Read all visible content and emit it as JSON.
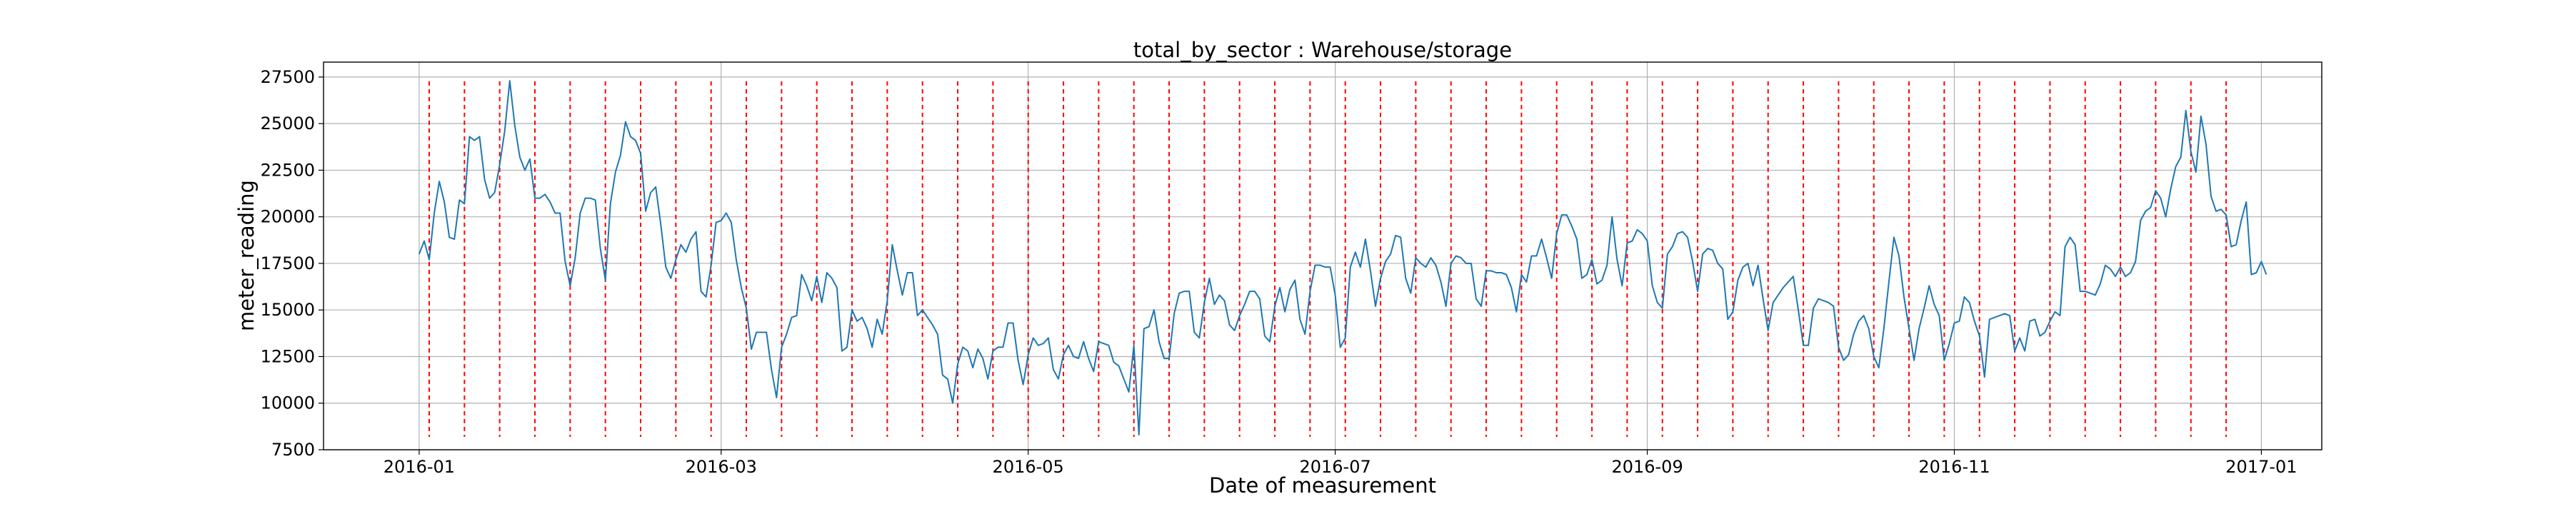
{
  "chart_data": {
    "type": "line",
    "title": "total_by_sector : Warehouse/storage",
    "xlabel": "Date of measurement",
    "ylabel": "meter_reading",
    "xlim": [
      "2015-12-13",
      "2017-01-13"
    ],
    "ylim": [
      7500,
      28300
    ],
    "x_ticks": [
      {
        "date": "2016-01-01",
        "label": "2016-01"
      },
      {
        "date": "2016-03-01",
        "label": "2016-03"
      },
      {
        "date": "2016-05-01",
        "label": "2016-05"
      },
      {
        "date": "2016-07-01",
        "label": "2016-07"
      },
      {
        "date": "2016-09-01",
        "label": "2016-09"
      },
      {
        "date": "2016-11-01",
        "label": "2016-11"
      },
      {
        "date": "2017-01-01",
        "label": "2017-01"
      }
    ],
    "y_ticks": [
      7500,
      10000,
      12500,
      15000,
      17500,
      20000,
      22500,
      25000,
      27500
    ],
    "grid": true,
    "line_color": "#1f77b4",
    "marker_color": "#ff0000",
    "series": [
      {
        "start_date": "2016-01-01",
        "values": [
          18000,
          18700,
          17700,
          20200,
          21900,
          20800,
          18900,
          18800,
          20900,
          20700,
          24300,
          24100,
          24300,
          22000,
          21000,
          21300,
          22800,
          24600,
          27300,
          24900,
          23200,
          22500,
          23100,
          21000,
          21000,
          21200,
          20800,
          20200,
          20200,
          17600,
          16300,
          17800,
          20200,
          21000,
          21000,
          20900,
          18300,
          16600,
          20700,
          22400,
          23300,
          25100,
          24300,
          24100,
          23400,
          20300,
          21300,
          21600,
          19600,
          17300,
          16700,
          17700,
          18500,
          18100,
          18800,
          19200,
          16000,
          15700,
          17400,
          19700,
          19800,
          20200,
          19700,
          17700,
          16200,
          15100,
          12900,
          13800,
          13800,
          13800,
          11800,
          10300,
          13000,
          13700,
          14600,
          14700,
          16900,
          16300,
          15500,
          16800,
          15400,
          17000,
          16700,
          16200,
          12800,
          13000,
          15000,
          14400,
          14600,
          14000,
          13000,
          14500,
          13700,
          15500,
          18500,
          17100,
          15800,
          17000,
          17000,
          14700,
          15000,
          14600,
          14200,
          13700,
          11500,
          11300,
          10000,
          12100,
          13000,
          12800,
          11900,
          12900,
          12400,
          11300,
          12800,
          13000,
          13000,
          14300,
          14300,
          12300,
          11000,
          12600,
          13500,
          13100,
          13200,
          13500,
          11800,
          11300,
          12600,
          13100,
          12500,
          12400,
          13300,
          12400,
          11700,
          13300,
          13200,
          13100,
          12200,
          12000,
          11300,
          10600,
          13100,
          8300,
          14000,
          14100,
          15000,
          13300,
          12400,
          12400,
          14800,
          15900,
          16000,
          16000,
          13800,
          13500,
          15400,
          16700,
          15300,
          15800,
          15500,
          14200,
          13900,
          14700,
          15300,
          16000,
          16000,
          15600,
          13600,
          13300,
          15200,
          16200,
          14900,
          16100,
          16600,
          14500,
          13700,
          16000,
          17400,
          17400,
          17300,
          17300,
          15800,
          13000,
          13500,
          17300,
          18100,
          17300,
          18800,
          17100,
          15200,
          16700,
          17600,
          18000,
          19000,
          18900,
          16700,
          15900,
          17800,
          17500,
          17300,
          17800,
          17400,
          16500,
          15200,
          17500,
          17900,
          17800,
          17500,
          17500,
          15600,
          15200,
          17100,
          17100,
          17000,
          17000,
          16900,
          16200,
          14900,
          16900,
          16500,
          17900,
          17900,
          18800,
          17800,
          16700,
          19100,
          20100,
          20100,
          19500,
          18800,
          16700,
          16900,
          17700,
          16400,
          16600,
          17400,
          20000,
          17700,
          16300,
          18600,
          18700,
          19300,
          19100,
          18700,
          16300,
          15400,
          15100,
          18000,
          18400,
          19100,
          19200,
          18900,
          17600,
          16000,
          18000,
          18300,
          18200,
          17500,
          17200,
          14500,
          14900,
          16600,
          17300,
          17500,
          16300,
          17400,
          15600,
          13900,
          15400,
          15800,
          16200,
          16500,
          16800,
          15000,
          13100,
          13100,
          15100,
          15600,
          15500,
          15400,
          15200,
          13000,
          12300,
          12600,
          13700,
          14400,
          14700,
          14000,
          12500,
          11900,
          14000,
          16500,
          18900,
          17900,
          15700,
          14000,
          12300,
          14000,
          15100,
          16300,
          15300,
          14700,
          12300,
          13200,
          14300,
          14400,
          15700,
          15400,
          14400,
          13600,
          11400,
          14500,
          14600,
          14700,
          14800,
          14700,
          12800,
          13500,
          12800,
          14400,
          14500,
          13600,
          13800,
          14400,
          14900,
          14700,
          18400,
          18900,
          18500,
          16000,
          16000,
          15900,
          15800,
          16400,
          17400,
          17200,
          16800,
          17300,
          16800,
          17000,
          17600,
          19800,
          20300,
          20500,
          21400,
          21000,
          20000,
          21500,
          22700,
          23200,
          25700,
          23500,
          22400,
          25400,
          23900,
          21100,
          20300,
          20400,
          20100,
          18400,
          18500,
          19800,
          20800,
          16900,
          17000,
          17600,
          16900
        ]
      }
    ],
    "markers": {
      "style": "dashed",
      "dates": [
        "2016-01-03",
        "2016-01-10",
        "2016-01-17",
        "2016-01-24",
        "2016-01-31",
        "2016-02-07",
        "2016-02-14",
        "2016-02-21",
        "2016-02-28",
        "2016-03-06",
        "2016-03-13",
        "2016-03-20",
        "2016-03-27",
        "2016-04-03",
        "2016-04-10",
        "2016-04-17",
        "2016-04-24",
        "2016-05-01",
        "2016-05-08",
        "2016-05-15",
        "2016-05-22",
        "2016-05-29",
        "2016-06-05",
        "2016-06-12",
        "2016-06-19",
        "2016-06-26",
        "2016-07-03",
        "2016-07-10",
        "2016-07-17",
        "2016-07-24",
        "2016-07-31",
        "2016-08-07",
        "2016-08-14",
        "2016-08-21",
        "2016-08-28",
        "2016-09-04",
        "2016-09-11",
        "2016-09-18",
        "2016-09-25",
        "2016-10-02",
        "2016-10-09",
        "2016-10-16",
        "2016-10-23",
        "2016-10-30",
        "2016-11-06",
        "2016-11-13",
        "2016-11-20",
        "2016-11-27",
        "2016-12-04",
        "2016-12-11",
        "2016-12-18",
        "2016-12-25"
      ]
    }
  }
}
